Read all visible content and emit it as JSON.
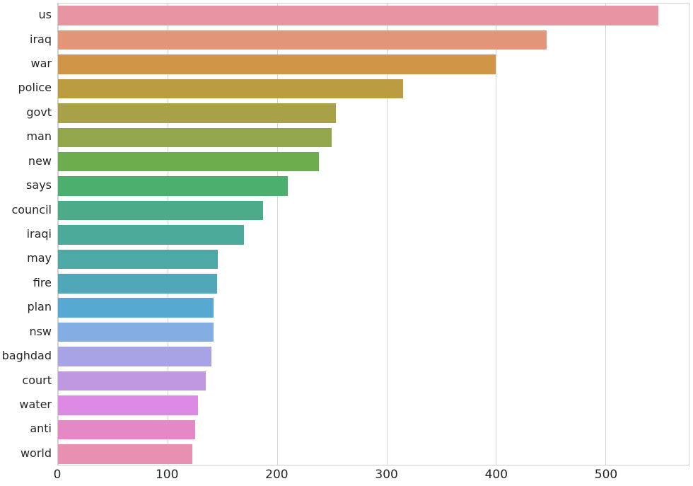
{
  "chart_data": {
    "type": "bar",
    "orientation": "horizontal",
    "title": "",
    "xlabel": "",
    "ylabel": "",
    "categories": [
      "us",
      "iraq",
      "war",
      "police",
      "govt",
      "man",
      "new",
      "says",
      "council",
      "iraqi",
      "may",
      "fire",
      "plan",
      "nsw",
      "baghdad",
      "court",
      "water",
      "anti",
      "world"
    ],
    "values": [
      548,
      446,
      400,
      315,
      254,
      250,
      238,
      210,
      187,
      170,
      146,
      145,
      142,
      142,
      140,
      135,
      128,
      125,
      123
    ],
    "colors": [
      "#e794a3",
      "#e39579",
      "#d09546",
      "#bb9c41",
      "#a8a147",
      "#93a64b",
      "#6ead4d",
      "#4caf6e",
      "#4cab88",
      "#4caa9a",
      "#4ca9a6",
      "#4fa8b8",
      "#56a9d0",
      "#84ade3",
      "#a8a3e5",
      "#c098e2",
      "#dc8ae4",
      "#e588c6",
      "#e890b1"
    ],
    "xlim": [
      0,
      576
    ],
    "x_ticks": [
      0,
      100,
      200,
      300,
      400,
      500
    ],
    "grid": "vertical",
    "legend": "none",
    "background_color": "#ffffff",
    "grid_color": "#d4d4d4",
    "spine_color": "#d0d0d0",
    "tick_label_color": "#262626",
    "bar_fraction": 0.8
  }
}
